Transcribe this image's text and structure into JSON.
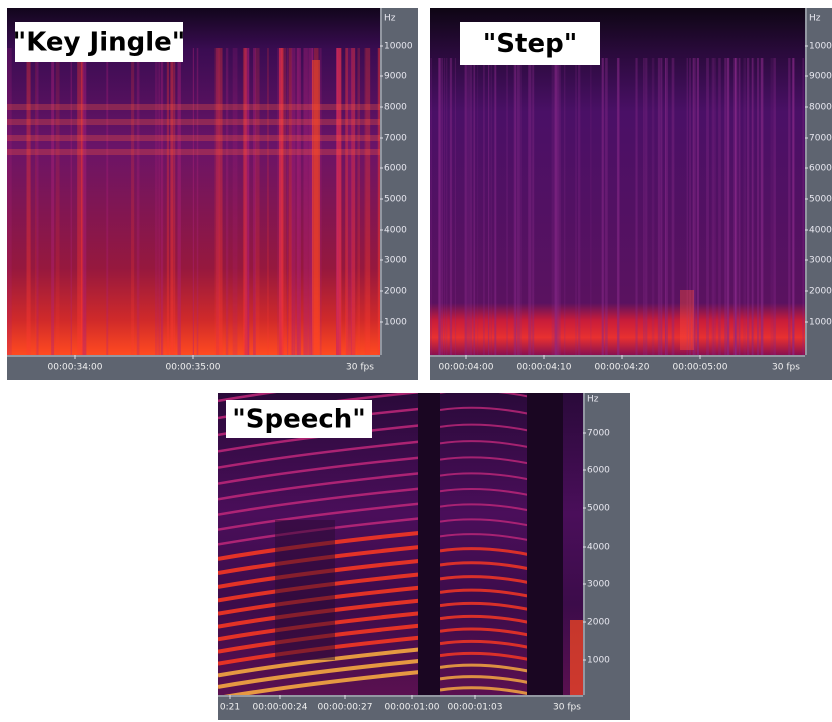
{
  "panels": [
    {
      "title": "\"Key Jingle\"",
      "unit": "Hz",
      "y_labels": [
        "10000",
        "9000",
        "8000",
        "7000",
        "6000",
        "5000",
        "4000",
        "3000",
        "2000",
        "1000"
      ],
      "x_labels": [
        "00:00:34:00",
        "00:00:35:00"
      ],
      "rate": "30 fps"
    },
    {
      "title": "\"Step\"",
      "unit": "Hz",
      "y_labels": [
        "10000",
        "9000",
        "8000",
        "7000",
        "6000",
        "5000",
        "4000",
        "3000",
        "2000",
        "1000"
      ],
      "x_labels": [
        "00:00:04:00",
        "00:00:04:10",
        "00:00:04:20",
        "00:00:05:00"
      ],
      "rate": "30 fps"
    },
    {
      "title": "\"Speech\"",
      "unit": "Hz",
      "y_labels": [
        "7000",
        "6000",
        "5000",
        "4000",
        "3000",
        "2000",
        "1000"
      ],
      "x_labels": [
        "0:21",
        "00:00:00:24",
        "00:00:00:27",
        "00:00:01:00",
        "00:00:01:03"
      ],
      "rate": "30 fps"
    }
  ]
}
